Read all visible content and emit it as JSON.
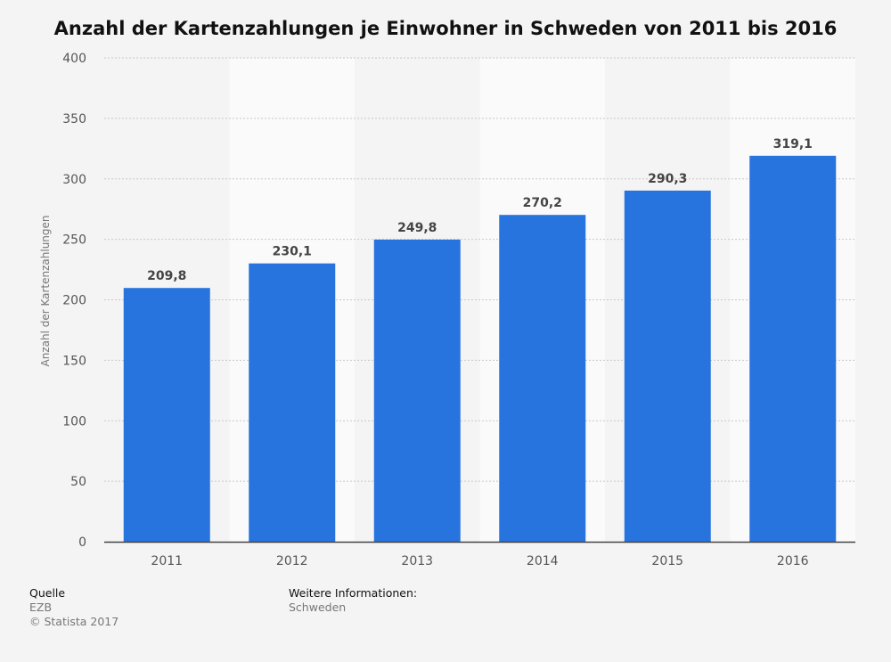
{
  "chart_data": {
    "type": "bar",
    "title": "Anzahl der Kartenzahlungen je Einwohner in Schweden von 2011 bis 2016",
    "xlabel": "",
    "ylabel": "Anzahl der Kartenzahlungen",
    "categories": [
      "2011",
      "2012",
      "2013",
      "2014",
      "2015",
      "2016"
    ],
    "values": [
      209.8,
      230.1,
      249.8,
      270.2,
      290.3,
      319.1
    ],
    "value_labels": [
      "209,8",
      "230,1",
      "249,8",
      "270,2",
      "290,3",
      "319,1"
    ],
    "ylim": [
      0,
      400
    ],
    "yticks": [
      0,
      50,
      100,
      150,
      200,
      250,
      300,
      350,
      400
    ],
    "grid": true,
    "bar_color": "#2874de"
  },
  "footer": {
    "source_heading": "Quelle",
    "source_name": "EZB",
    "copyright": "© Statista 2017",
    "info_heading": "Weitere Informationen:",
    "info_text": "Schweden"
  }
}
